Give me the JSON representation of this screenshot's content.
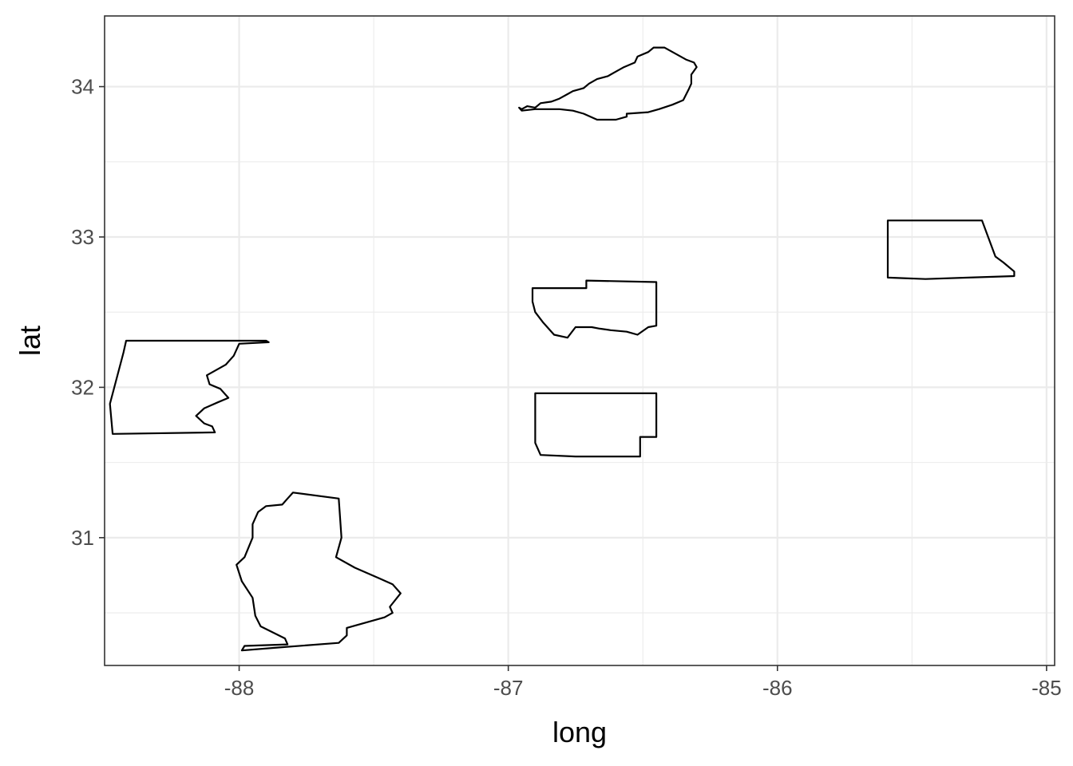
{
  "chart_data": {
    "type": "map",
    "xlabel": "long",
    "ylabel": "lat",
    "xlim": [
      -88.5,
      -84.97
    ],
    "ylim": [
      30.15,
      34.47
    ],
    "x_ticks": [
      {
        "value": -88,
        "label": "-88"
      },
      {
        "value": -87,
        "label": "-87"
      },
      {
        "value": -86,
        "label": "-86"
      },
      {
        "value": -85,
        "label": "-85"
      }
    ],
    "y_ticks": [
      {
        "value": 31,
        "label": "31"
      },
      {
        "value": 32,
        "label": "32"
      },
      {
        "value": 33,
        "label": "33"
      },
      {
        "value": 34,
        "label": "34"
      }
    ],
    "x_minor": [
      -88.5,
      -87.5,
      -86.5,
      -85.5
    ],
    "y_minor": [
      30.5,
      31.5,
      32.5,
      33.5
    ],
    "grid": true,
    "theme": "bw",
    "colors": {
      "outline": "#000000",
      "grid": "#ebebeb",
      "border": "#333333",
      "tick_text": "#4d4d4d"
    },
    "polygons": [
      {
        "id": "north-county",
        "points": [
          [
            -86.95,
            33.85
          ],
          [
            -86.93,
            33.87
          ],
          [
            -86.9,
            33.86
          ],
          [
            -86.88,
            33.89
          ],
          [
            -86.84,
            33.9
          ],
          [
            -86.81,
            33.92
          ],
          [
            -86.78,
            33.95
          ],
          [
            -86.76,
            33.97
          ],
          [
            -86.72,
            33.99
          ],
          [
            -86.7,
            34.02
          ],
          [
            -86.67,
            34.05
          ],
          [
            -86.63,
            34.07
          ],
          [
            -86.6,
            34.1
          ],
          [
            -86.57,
            34.13
          ],
          [
            -86.53,
            34.16
          ],
          [
            -86.52,
            34.2
          ],
          [
            -86.48,
            34.23
          ],
          [
            -86.46,
            34.26
          ],
          [
            -86.42,
            34.26
          ],
          [
            -86.38,
            34.22
          ],
          [
            -86.34,
            34.18
          ],
          [
            -86.31,
            34.16
          ],
          [
            -86.3,
            34.13
          ],
          [
            -86.32,
            34.08
          ],
          [
            -86.32,
            34.02
          ],
          [
            -86.33,
            33.98
          ],
          [
            -86.35,
            33.91
          ],
          [
            -86.39,
            33.88
          ],
          [
            -86.44,
            33.85
          ],
          [
            -86.48,
            33.83
          ],
          [
            -86.56,
            33.82
          ],
          [
            -86.56,
            33.8
          ],
          [
            -86.6,
            33.78
          ],
          [
            -86.63,
            33.78
          ],
          [
            -86.67,
            33.78
          ],
          [
            -86.72,
            33.82
          ],
          [
            -86.76,
            33.84
          ],
          [
            -86.81,
            33.85
          ],
          [
            -86.9,
            33.85
          ],
          [
            -86.95,
            33.84
          ],
          [
            -86.96,
            33.86
          ],
          [
            -86.95,
            33.85
          ]
        ]
      },
      {
        "id": "east-county",
        "points": [
          [
            -85.59,
            33.11
          ],
          [
            -85.24,
            33.11
          ],
          [
            -85.19,
            32.87
          ],
          [
            -85.16,
            32.83
          ],
          [
            -85.12,
            32.77
          ],
          [
            -85.12,
            32.74
          ],
          [
            -85.29,
            32.73
          ],
          [
            -85.45,
            32.72
          ],
          [
            -85.59,
            32.73
          ],
          [
            -85.59,
            33.11
          ]
        ]
      },
      {
        "id": "central-county-north",
        "points": [
          [
            -86.91,
            32.66
          ],
          [
            -86.71,
            32.66
          ],
          [
            -86.71,
            32.71
          ],
          [
            -86.45,
            32.7
          ],
          [
            -86.45,
            32.41
          ],
          [
            -86.48,
            32.4
          ],
          [
            -86.52,
            32.35
          ],
          [
            -86.56,
            32.37
          ],
          [
            -86.62,
            32.38
          ],
          [
            -86.66,
            32.39
          ],
          [
            -86.69,
            32.4
          ],
          [
            -86.75,
            32.4
          ],
          [
            -86.78,
            32.33
          ],
          [
            -86.83,
            32.35
          ],
          [
            -86.87,
            32.43
          ],
          [
            -86.9,
            32.5
          ],
          [
            -86.91,
            32.57
          ],
          [
            -86.91,
            32.66
          ]
        ]
      },
      {
        "id": "central-county-south",
        "points": [
          [
            -86.9,
            31.96
          ],
          [
            -86.45,
            31.96
          ],
          [
            -86.45,
            31.67
          ],
          [
            -86.51,
            31.67
          ],
          [
            -86.51,
            31.54
          ],
          [
            -86.63,
            31.54
          ],
          [
            -86.75,
            31.54
          ],
          [
            -86.88,
            31.55
          ],
          [
            -86.9,
            31.63
          ],
          [
            -86.9,
            31.96
          ]
        ]
      },
      {
        "id": "west-county",
        "points": [
          [
            -88.42,
            32.31
          ],
          [
            -87.9,
            32.31
          ],
          [
            -87.89,
            32.3
          ],
          [
            -88.0,
            32.29
          ],
          [
            -88.02,
            32.21
          ],
          [
            -88.05,
            32.15
          ],
          [
            -88.12,
            32.08
          ],
          [
            -88.11,
            32.02
          ],
          [
            -88.07,
            31.99
          ],
          [
            -88.04,
            31.93
          ],
          [
            -88.08,
            31.9
          ],
          [
            -88.13,
            31.86
          ],
          [
            -88.16,
            31.81
          ],
          [
            -88.13,
            31.76
          ],
          [
            -88.1,
            31.74
          ],
          [
            -88.09,
            31.7
          ],
          [
            -88.47,
            31.69
          ],
          [
            -88.48,
            31.89
          ],
          [
            -88.43,
            32.23
          ],
          [
            -88.42,
            32.31
          ]
        ]
      },
      {
        "id": "southwest-county",
        "points": [
          [
            -87.8,
            31.3
          ],
          [
            -87.63,
            31.26
          ],
          [
            -87.62,
            31.0
          ],
          [
            -87.64,
            30.87
          ],
          [
            -87.57,
            30.8
          ],
          [
            -87.48,
            30.73
          ],
          [
            -87.43,
            30.69
          ],
          [
            -87.4,
            30.63
          ],
          [
            -87.44,
            30.54
          ],
          [
            -87.43,
            30.5
          ],
          [
            -87.46,
            30.47
          ],
          [
            -87.6,
            30.4
          ],
          [
            -87.6,
            30.35
          ],
          [
            -87.63,
            30.3
          ],
          [
            -87.85,
            30.27
          ],
          [
            -87.99,
            30.25
          ],
          [
            -87.98,
            30.28
          ],
          [
            -87.82,
            30.29
          ],
          [
            -87.83,
            30.33
          ],
          [
            -87.92,
            30.41
          ],
          [
            -87.94,
            30.48
          ],
          [
            -87.95,
            30.6
          ],
          [
            -87.99,
            30.71
          ],
          [
            -88.01,
            30.82
          ],
          [
            -87.98,
            30.87
          ],
          [
            -87.95,
            31.0
          ],
          [
            -87.95,
            31.09
          ],
          [
            -87.93,
            31.17
          ],
          [
            -87.9,
            31.21
          ],
          [
            -87.84,
            31.22
          ],
          [
            -87.82,
            31.26
          ],
          [
            -87.8,
            31.3
          ]
        ]
      }
    ]
  }
}
